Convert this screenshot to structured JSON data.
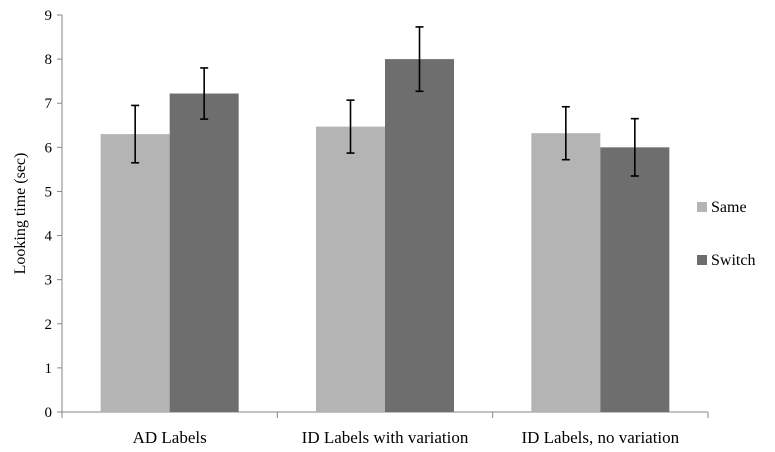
{
  "chart_data": {
    "type": "bar",
    "title": "",
    "xlabel": "",
    "ylabel": "Looking time (sec)",
    "ylim": [
      0,
      9
    ],
    "yticks": [
      0,
      1,
      2,
      3,
      4,
      5,
      6,
      7,
      8,
      9
    ],
    "categories": [
      "AD Labels",
      "ID Labels with variation",
      "ID Labels, no variation"
    ],
    "series": [
      {
        "name": "Same",
        "color": "#b4b4b4",
        "values": [
          6.3,
          6.47,
          6.32
        ],
        "error": [
          0.65,
          0.6,
          0.6
        ]
      },
      {
        "name": "Switch",
        "color": "#6e6e6e",
        "values": [
          7.22,
          8.0,
          6.0
        ],
        "error": [
          0.58,
          0.73,
          0.65
        ]
      }
    ],
    "grid": false,
    "legend_position": "right"
  }
}
